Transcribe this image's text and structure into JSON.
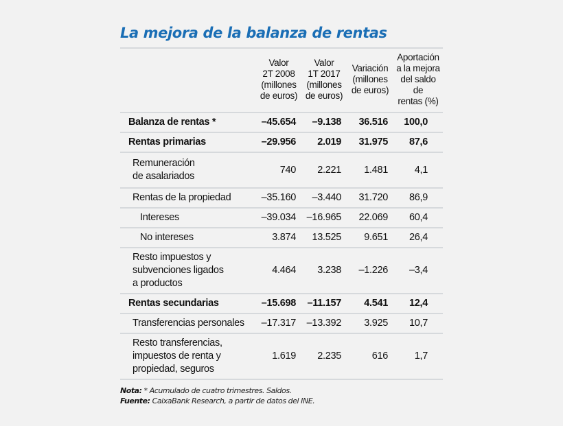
{
  "title": "La mejora de la balanza de rentas",
  "colors": {
    "title": "#1a6eb5",
    "rule": "#d6d9dc",
    "background": "#f2f2f2"
  },
  "table": {
    "headers": [
      "",
      "Valor 2T 2008 (millones de euros)",
      "Valor 1T 2017 (millones de euros)",
      "Variación (millones de euros)",
      "Aportación a la mejora del saldo de rentas (%)"
    ],
    "header_lines": {
      "h1": [
        "Valor",
        "2T 2008",
        "(millones",
        "de euros)"
      ],
      "h2": [
        "Valor",
        "1T 2017",
        "(millones",
        "de euros)"
      ],
      "h3": [
        "Variación",
        "(millones",
        "de euros)"
      ],
      "h4": [
        "Aportación",
        "a la mejora",
        "del saldo de",
        "rentas (%)"
      ]
    },
    "rows": [
      {
        "label": "Balanza de rentas *",
        "v2008": "–45.654",
        "v2017": "–9.138",
        "var": "36.516",
        "aport": "100,0",
        "bold": true,
        "level": 0
      },
      {
        "label": "Rentas primarias",
        "v2008": "–29.956",
        "v2017": "2.019",
        "var": "31.975",
        "aport": "87,6",
        "bold": true,
        "level": 0
      },
      {
        "label": "Remuneración de asalariados",
        "label_lines": [
          "Remuneración",
          "de asalariados"
        ],
        "v2008": "740",
        "v2017": "2.221",
        "var": "1.481",
        "aport": "4,1",
        "bold": false,
        "level": 1
      },
      {
        "label": "Rentas de la propiedad",
        "v2008": "–35.160",
        "v2017": "–3.440",
        "var": "31.720",
        "aport": "86,9",
        "bold": false,
        "level": 1
      },
      {
        "label": "Intereses",
        "v2008": "–39.034",
        "v2017": "–16.965",
        "var": "22.069",
        "aport": "60,4",
        "bold": false,
        "level": 2
      },
      {
        "label": "No intereses",
        "v2008": "3.874",
        "v2017": "13.525",
        "var": "9.651",
        "aport": "26,4",
        "bold": false,
        "level": 2
      },
      {
        "label": "Resto impuestos y subvenciones ligados a productos",
        "label_lines": [
          "Resto impuestos y",
          "subvenciones ligados",
          "a productos"
        ],
        "v2008": "4.464",
        "v2017": "3.238",
        "var": "–1.226",
        "aport": "–3,4",
        "bold": false,
        "level": 1
      },
      {
        "label": "Rentas secundarias",
        "v2008": "–15.698",
        "v2017": "–11.157",
        "var": "4.541",
        "aport": "12,4",
        "bold": true,
        "level": 0
      },
      {
        "label": "Transferencias personales",
        "v2008": "–17.317",
        "v2017": "–13.392",
        "var": "3.925",
        "aport": "10,7",
        "bold": false,
        "level": 1
      },
      {
        "label": "Resto transferencias, impuestos de renta y propiedad, seguros",
        "label_lines": [
          "Resto transferencias,",
          "impuestos de renta y",
          "propiedad, seguros"
        ],
        "v2008": "1.619",
        "v2017": "2.235",
        "var": "616",
        "aport": "1,7",
        "bold": false,
        "level": 1
      }
    ]
  },
  "notes": {
    "nota_label": "Nota:",
    "nota_text": " * Acumulado de cuatro trimestres. Saldos.",
    "fuente_label": "Fuente:",
    "fuente_text": " CaixaBank Research, a partir de datos del INE."
  }
}
